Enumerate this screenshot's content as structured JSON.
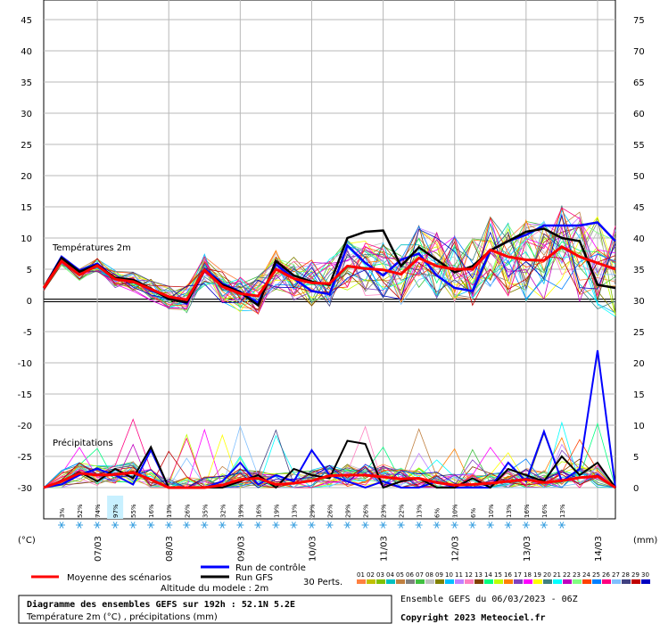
{
  "chart_data": {
    "type": "line",
    "sections": {
      "temperature": "Températures 2m",
      "precip": "Précipitations"
    },
    "left_axis": {
      "unit": "(°C)",
      "ticks": [
        45,
        40,
        35,
        30,
        25,
        20,
        15,
        10,
        5,
        0,
        -5,
        -10,
        -15,
        -20,
        -25,
        -30
      ],
      "range": [
        -30,
        48
      ]
    },
    "right_axis": {
      "unit": "(mm)",
      "ticks": [
        75,
        70,
        65,
        60,
        55,
        50,
        45,
        40,
        35,
        30,
        25,
        20,
        15,
        10,
        5,
        0
      ],
      "range": [
        0,
        78
      ]
    },
    "x_labels": [
      "07/03",
      "08/03",
      "09/03",
      "10/03",
      "11/03",
      "12/03",
      "13/03",
      "14/03"
    ],
    "x_steps": 32,
    "precip_probability": [
      "3%",
      "52%",
      "74%",
      "97%",
      "55%",
      "16%",
      "13%",
      "26%",
      "35%",
      "32%",
      "19%",
      "16%",
      "19%",
      "13%",
      "29%",
      "26%",
      "29%",
      "26%",
      "23%",
      "22%",
      "13%",
      "6%",
      "10%",
      "6%",
      "10%",
      "13%",
      "16%",
      "16%",
      "13%"
    ],
    "highlight_prob_index": 3,
    "series": [
      {
        "name": "Moyenne des scénarios",
        "color": "#ff0000",
        "values": [
          2,
          6.3,
          4.1,
          5.6,
          3.4,
          3.0,
          1.8,
          0.6,
          0.1,
          4.9,
          2.2,
          1.1,
          0.7,
          5.0,
          3.5,
          2.8,
          2.7,
          5.5,
          5.1,
          4.9,
          4.2,
          6.8,
          5.5,
          5.0,
          5.0,
          8.1,
          7.0,
          6.5,
          6.4,
          8.6,
          7.0,
          6.0,
          5.0
        ]
      },
      {
        "name": "Run de contrôle",
        "color": "#0000ff",
        "values": [
          2,
          7.0,
          4.8,
          5.9,
          3.4,
          3.2,
          1.6,
          0.5,
          -0.5,
          5.1,
          2.7,
          1.4,
          -0.4,
          5.8,
          3.5,
          1.5,
          1.0,
          8.8,
          6.0,
          4.0,
          6.5,
          7.5,
          4.0,
          2.0,
          1.5,
          8.0,
          9.5,
          10.5,
          12.0,
          12.0,
          12.0,
          12.5,
          9.5
        ]
      },
      {
        "name": "Run GFS",
        "color": "#000000",
        "values": [
          2,
          6.8,
          4.6,
          5.7,
          3.6,
          3.3,
          1.9,
          0.2,
          -0.3,
          4.8,
          2.5,
          1.3,
          -0.8,
          6.3,
          4.0,
          3.0,
          2.5,
          10.0,
          11.0,
          11.2,
          5.5,
          8.5,
          6.5,
          4.5,
          5.5,
          8.0,
          9.5,
          11.0,
          11.5,
          10.0,
          9.5,
          2.5,
          2.0
        ]
      }
    ],
    "precip_series": [
      {
        "name": "Moyenne des scénarios",
        "values": [
          0,
          1.0,
          2.3,
          2.0,
          2.1,
          2.4,
          1.3,
          0,
          0,
          0,
          0.4,
          1.3,
          1.5,
          0.5,
          0.7,
          1.1,
          1.9,
          2.0,
          2.0,
          1.7,
          1.4,
          1.5,
          0.8,
          0.4,
          0.5,
          0.7,
          1.0,
          1.3,
          0.8,
          1.1,
          1.6,
          1.8,
          0
        ]
      },
      {
        "name": "Run de contrôle",
        "values": [
          0,
          0.5,
          2.0,
          3.0,
          2.0,
          0.5,
          6.0,
          0,
          0,
          0,
          1.0,
          4.0,
          0.5,
          2.0,
          1.0,
          6.0,
          2.0,
          1.0,
          0,
          1.0,
          0,
          0,
          1.0,
          0,
          0,
          0,
          4.0,
          1.0,
          9.0,
          1.0,
          3.0,
          22.0,
          0
        ]
      },
      {
        "name": "Run GFS",
        "values": [
          0,
          1.0,
          2.5,
          1.0,
          3.0,
          1.5,
          6.5,
          0,
          0,
          0,
          0,
          1.0,
          2.0,
          0,
          3.0,
          2.0,
          1.5,
          7.5,
          7.0,
          0,
          1.0,
          1.5,
          0,
          0,
          1.5,
          0,
          3.0,
          2.0,
          1.0,
          5.0,
          2.0,
          4.0,
          0
        ]
      }
    ],
    "ensemble_colors": [
      "#ff8040",
      "#c0c000",
      "#80c000",
      "#00c0c0",
      "#c08040",
      "#808080",
      "#40c040",
      "#c0c0c0",
      "#808000",
      "#00c0ff",
      "#c080ff",
      "#ff80c0",
      "#804000",
      "#00ff80",
      "#c0ff00",
      "#ff8000",
      "#8040c0",
      "#ff00ff",
      "#ffff00",
      "#408080",
      "#00ffff",
      "#c000c0",
      "#80ff80",
      "#ff4000",
      "#0080ff",
      "#ff0080",
      "#80c0ff",
      "#404080",
      "#c00000",
      "#0000c0"
    ]
  },
  "legend": {
    "mean": "Moyenne des scénarios",
    "control": "Run de contrôle",
    "gfs": "Run GFS",
    "perts": "30 Perts.",
    "altitude": "Altitude du modele : 2m",
    "pert_numbers": [
      "01",
      "02",
      "03",
      "04",
      "05",
      "06",
      "07",
      "08",
      "09",
      "10",
      "11",
      "12",
      "13",
      "14",
      "15",
      "16",
      "17",
      "18",
      "19",
      "20",
      "21",
      "22",
      "23",
      "24",
      "25",
      "26",
      "27",
      "28",
      "29",
      "30"
    ]
  },
  "footer": {
    "title": "Diagramme des ensembles GEFS sur 192h : 52.1N 5.2E",
    "subtitle": "Température 2m (°C) , précipitations (mm)",
    "run": "Ensemble GEFS du 06/03/2023 - 06Z",
    "copyright": "Copyright 2023 Meteociel.fr"
  }
}
